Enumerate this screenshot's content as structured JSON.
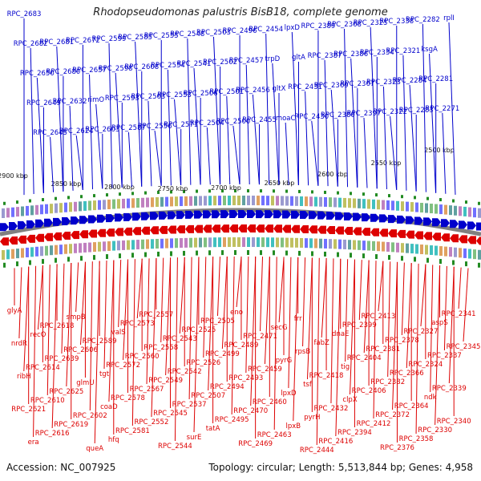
{
  "title": "Rhodopseudomonas palustris BisB18, complete genome",
  "footer": {
    "accession": "Accession: NC_007925",
    "topology": "Topology: circular; Length: 5,513,844 bp; Genes: 4,958"
  },
  "colors": {
    "forward": "#0000cc",
    "reverse": "#dd0000",
    "backbone": "#808080",
    "gc": "#228b22"
  },
  "scale_labels": [
    "2500 kbp",
    "2550 kbp",
    "2600 kbp",
    "2650 kbp",
    "2700 kbp",
    "2750 kbp",
    "2800 kbp",
    "2850 kbp",
    "2900 kbp"
  ],
  "forward_labels": [
    "RPC_2683",
    "RPC_2682",
    "RPC_2650",
    "RPC_2649",
    "RPC_2645",
    "RPC_2681",
    "RPC_2680",
    "RPC_2632",
    "RPC_2624",
    "RPC_2672",
    "RPC_2657",
    "rimO",
    "RPC_2603",
    "RPC_2599",
    "RPC_2598",
    "RPC_2593",
    "RPC_2587",
    "RPC_2585",
    "RPC_2608",
    "RPC_2563",
    "RPC_2556",
    "RPC_2555",
    "RPC_2554",
    "RPC_2553",
    "RPC_2571",
    "RPC_2548",
    "RPC_2541",
    "RPC_2506",
    "RPC_2504",
    "RPC_2503",
    "RPC_2502",
    "RPC_2501",
    "RPC_2500",
    "RPC_2496",
    "RPC_2457",
    "RPC_2456",
    "RPC_2455",
    "RPC_2454",
    "trpD",
    "gltX",
    "moaC",
    "lpxD",
    "gltA",
    "RPC_2431",
    "RPC_2430",
    "RPC_2389",
    "RPC_2387",
    "RPC_2369",
    "RPC_2380",
    "RPC_2368",
    "RPC_2386",
    "RPC_2367",
    "RPC_2397",
    "RPC_2325",
    "RPC_2334",
    "RPC_2323",
    "RPC_2322",
    "RPC_2338",
    "RPC_2321",
    "RPC_2284",
    "RPC_2283",
    "RPC_2282",
    "ksgA",
    "RPC_2281",
    "RPC_2271",
    "rplI"
  ],
  "reverse_labels": [
    "glyA",
    "nrdR",
    "ribH",
    "RPC_2621",
    "era",
    "recO",
    "RPC_2614",
    "RPC_2610",
    "RPC_2616",
    "RPC_2618",
    "RPC_2639",
    "RPC_2625",
    "RPC_2619",
    "smpB",
    "RPC_2606",
    "glmU",
    "RPC_2602",
    "queA",
    "RPC_2589",
    "tgt",
    "coaD",
    "hfq",
    "valS",
    "RPC_2572",
    "RPC_2578",
    "RPC_2581",
    "RPC_2573",
    "RPC_2560",
    "RPC_2567",
    "RPC_2552",
    "RPC_2557",
    "RPC_2558",
    "RPC_2549",
    "RPC_2545",
    "RPC_2544",
    "RPC_2543",
    "RPC_2542",
    "RPC_2537",
    "surE",
    "RPC_2525",
    "RPC_2526",
    "RPC_2507",
    "tatA",
    "RPC_2505",
    "RPC_2499",
    "RPC_2494",
    "RPC_2495",
    "eno",
    "RPC_2489",
    "RPC_2493",
    "RPC_2470",
    "RPC_2469",
    "RPC_2471",
    "RPC_2459",
    "RPC_2460",
    "RPC_2463",
    "secG",
    "pyrG",
    "lpxD",
    "lpxB",
    "frr",
    "rpsB",
    "tsf",
    "pyrH",
    "RPC_2444",
    "fabZ",
    "RPC_2418",
    "RPC_2432",
    "RPC_2416",
    "dnaE",
    "tig",
    "clpX",
    "RPC_2394",
    "RPC_2399",
    "RPC_2404",
    "RPC_2406",
    "RPC_2412",
    "RPC_2413",
    "RPC_2381",
    "RPC_2382",
    "RPC_2372",
    "RPC_2376",
    "RPC_2378",
    "RPC_2366",
    "RPC_2364",
    "RPC_2358",
    "RPC_2327",
    "RPC_2324",
    "ndk",
    "RPC_2330",
    "aspS",
    "RPC_2337",
    "RPC_2339",
    "RPC_2340",
    "RPC_2341",
    "RPC_2345"
  ]
}
